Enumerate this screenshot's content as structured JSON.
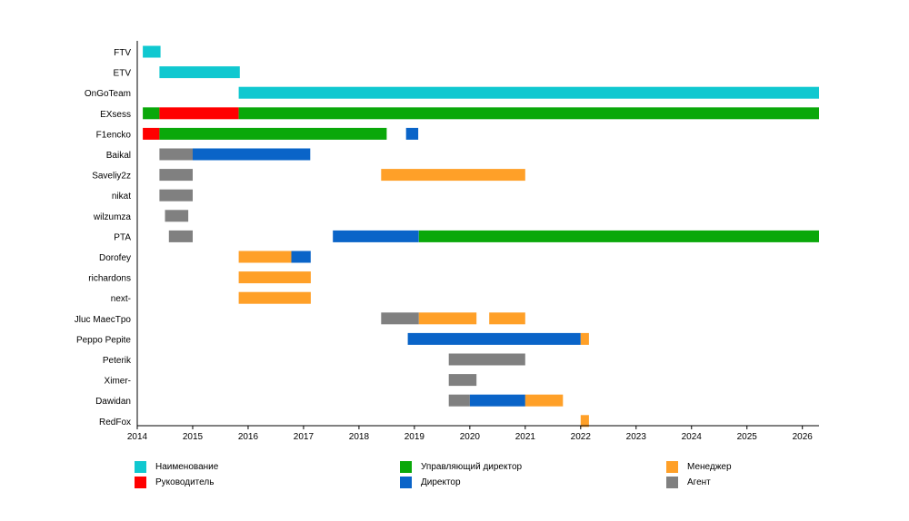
{
  "chart_data": {
    "type": "gantt-timeline",
    "x_range": [
      2014,
      2026.3
    ],
    "x_ticks": [
      "2014",
      "2015",
      "2016",
      "2017",
      "2018",
      "2019",
      "2020",
      "2021",
      "2022",
      "2023",
      "2024",
      "2025",
      "2026"
    ],
    "roles": [
      {
        "key": "name",
        "label": "Наименование",
        "color": "#10c8d0"
      },
      {
        "key": "head",
        "label": "Руководитель",
        "color": "#ff0000"
      },
      {
        "key": "md",
        "label": "Управляющий директор",
        "color": "#0aa80a"
      },
      {
        "key": "dir",
        "label": "Директор",
        "color": "#0a64c8"
      },
      {
        "key": "mgr",
        "label": "Менеджер",
        "color": "#ffa028"
      },
      {
        "key": "agent",
        "label": "Агент",
        "color": "#808080"
      }
    ],
    "rows": [
      {
        "label": "FTV",
        "segments": [
          {
            "role": "name",
            "start": 2014.1,
            "end": 2014.42
          }
        ]
      },
      {
        "label": "ETV",
        "segments": [
          {
            "role": "name",
            "start": 2014.4,
            "end": 2015.85
          }
        ]
      },
      {
        "label": "OnGoTeam",
        "segments": [
          {
            "role": "name",
            "start": 2015.83,
            "end": 2026.3
          }
        ]
      },
      {
        "label": "EXsess",
        "segments": [
          {
            "role": "md",
            "start": 2014.1,
            "end": 2014.4
          },
          {
            "role": "head",
            "start": 2014.4,
            "end": 2015.83
          },
          {
            "role": "md",
            "start": 2015.83,
            "end": 2026.3
          }
        ]
      },
      {
        "label": "F1encko",
        "segments": [
          {
            "role": "head",
            "start": 2014.1,
            "end": 2014.4
          },
          {
            "role": "md",
            "start": 2014.4,
            "end": 2018.5
          },
          {
            "role": "dir",
            "start": 2018.85,
            "end": 2019.07
          }
        ]
      },
      {
        "label": "Baikal",
        "segments": [
          {
            "role": "agent",
            "start": 2014.4,
            "end": 2015.0
          },
          {
            "role": "dir",
            "start": 2015.0,
            "end": 2017.12
          }
        ]
      },
      {
        "label": "Saveliy2z",
        "segments": [
          {
            "role": "agent",
            "start": 2014.4,
            "end": 2015.0
          },
          {
            "role": "mgr",
            "start": 2018.4,
            "end": 2021.0
          }
        ]
      },
      {
        "label": "nikat",
        "segments": [
          {
            "role": "agent",
            "start": 2014.4,
            "end": 2015.0
          }
        ]
      },
      {
        "label": "wilzumza",
        "segments": [
          {
            "role": "agent",
            "start": 2014.5,
            "end": 2014.92
          }
        ]
      },
      {
        "label": "PTA",
        "segments": [
          {
            "role": "agent",
            "start": 2014.57,
            "end": 2015.0
          },
          {
            "role": "dir",
            "start": 2017.53,
            "end": 2019.08
          },
          {
            "role": "md",
            "start": 2019.08,
            "end": 2026.3
          }
        ]
      },
      {
        "label": "Dorofey",
        "segments": [
          {
            "role": "mgr",
            "start": 2015.83,
            "end": 2016.78
          },
          {
            "role": "dir",
            "start": 2016.78,
            "end": 2017.13
          }
        ]
      },
      {
        "label": "richardons",
        "segments": [
          {
            "role": "mgr",
            "start": 2015.83,
            "end": 2017.13
          }
        ]
      },
      {
        "label": "next-",
        "segments": [
          {
            "role": "mgr",
            "start": 2015.83,
            "end": 2017.13
          }
        ]
      },
      {
        "label": "Jluc MaecTpo",
        "segments": [
          {
            "role": "agent",
            "start": 2018.4,
            "end": 2019.08
          },
          {
            "role": "mgr",
            "start": 2019.08,
            "end": 2020.12
          },
          {
            "role": "mgr",
            "start": 2020.35,
            "end": 2021.0
          }
        ]
      },
      {
        "label": "Peppo Pepite",
        "segments": [
          {
            "role": "dir",
            "start": 2018.88,
            "end": 2022.0
          },
          {
            "role": "mgr",
            "start": 2022.0,
            "end": 2022.15
          }
        ]
      },
      {
        "label": "Peterik",
        "segments": [
          {
            "role": "agent",
            "start": 2019.62,
            "end": 2021.0
          }
        ]
      },
      {
        "label": "Ximer-",
        "segments": [
          {
            "role": "agent",
            "start": 2019.62,
            "end": 2020.12
          }
        ]
      },
      {
        "label": "Dawidan",
        "segments": [
          {
            "role": "agent",
            "start": 2019.62,
            "end": 2020.0
          },
          {
            "role": "dir",
            "start": 2020.0,
            "end": 2021.0
          },
          {
            "role": "mgr",
            "start": 2021.0,
            "end": 2021.68
          }
        ]
      },
      {
        "label": "RedFox",
        "segments": [
          {
            "role": "mgr",
            "start": 2022.0,
            "end": 2022.15
          }
        ]
      }
    ]
  }
}
